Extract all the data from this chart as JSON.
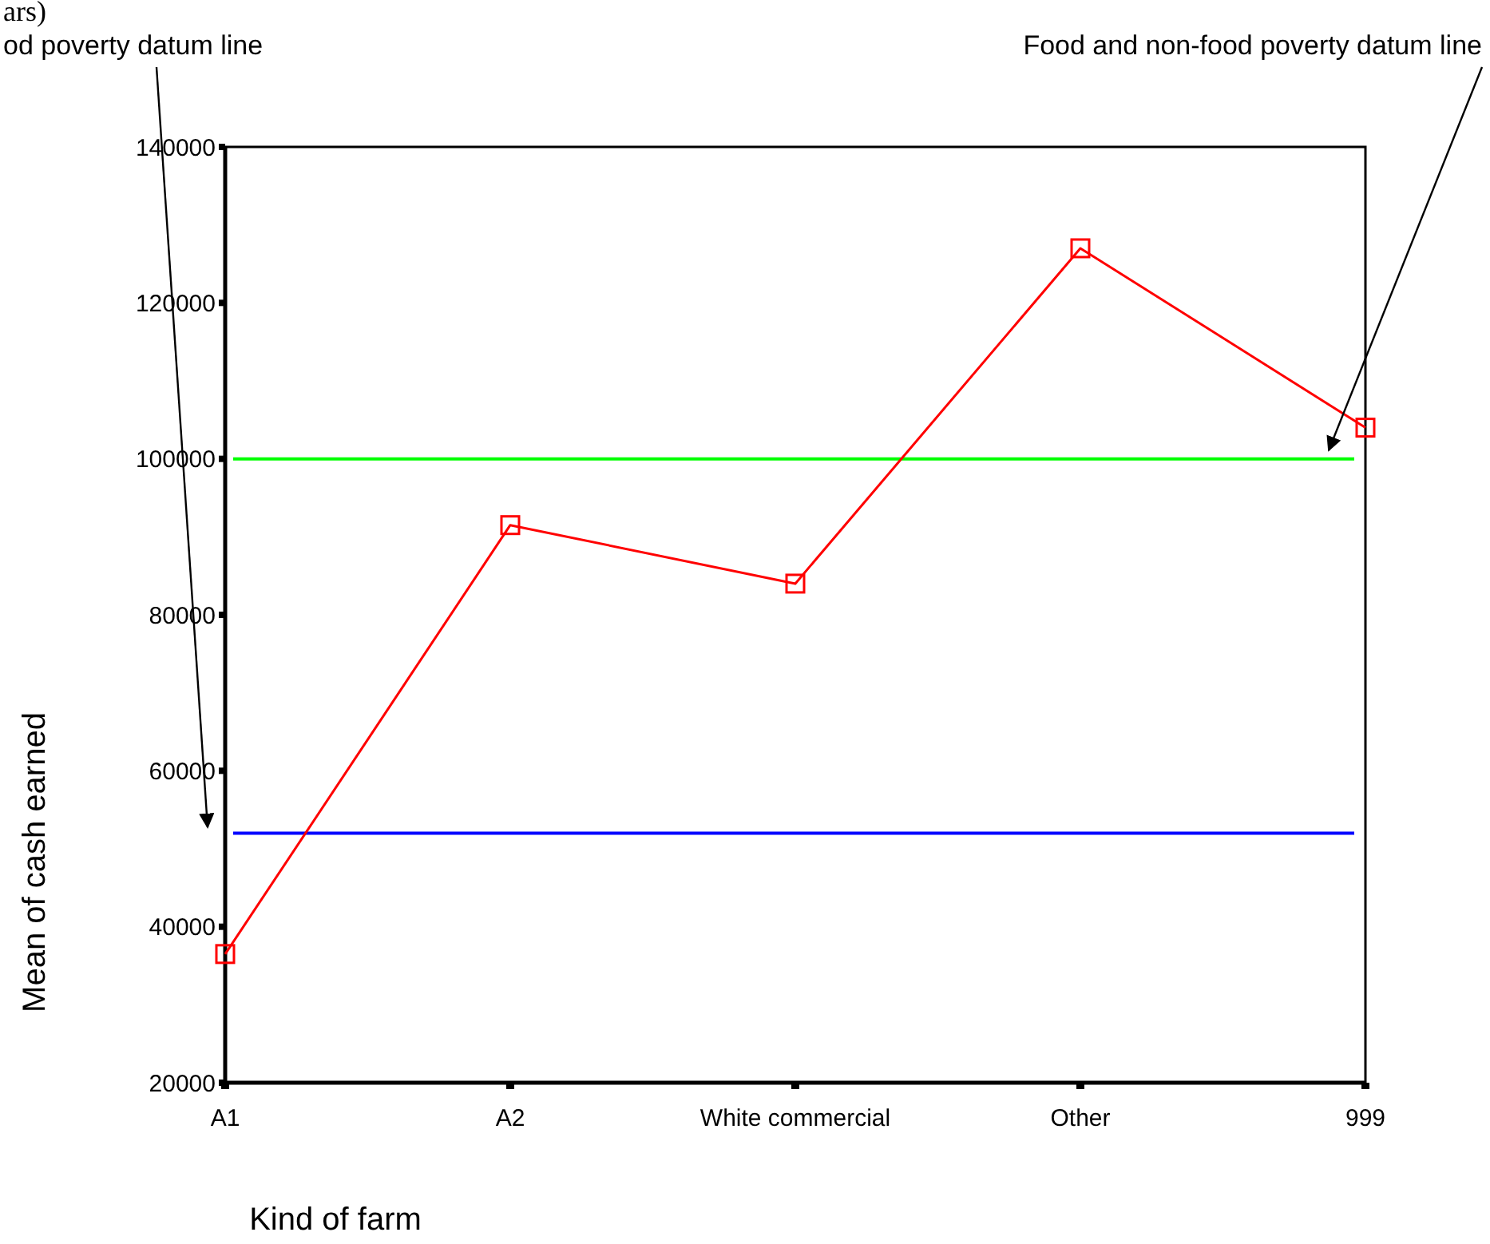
{
  "chart_data": {
    "type": "line",
    "title": "ars)",
    "xlabel": "Kind of farm",
    "ylabel": "Mean of cash earned",
    "categories": [
      "A1",
      "A2",
      "White commercial",
      "Other",
      "999"
    ],
    "series": [
      {
        "color": "#ff0000",
        "values": [
          36500,
          91500,
          84000,
          127000,
          104000
        ]
      }
    ],
    "ylim": [
      20000,
      140000
    ],
    "yticks": [
      20000,
      40000,
      60000,
      80000,
      100000,
      120000,
      140000
    ],
    "marker": "square",
    "line_style": "solid",
    "grid": false,
    "ref_lines": [
      {
        "axis": "y",
        "value": 100000,
        "color": "#00ff00"
      },
      {
        "axis": "y",
        "value": 52000,
        "color": "#0000ff"
      }
    ],
    "annotations": [
      "od poverty datum line",
      "Food and non-food poverty datum line"
    ]
  }
}
